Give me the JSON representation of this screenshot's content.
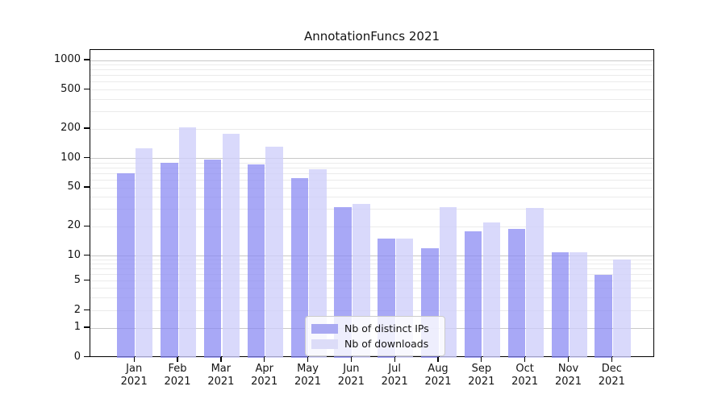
{
  "title": "AnnotationFuncs 2021",
  "legend": {
    "items": [
      {
        "label": "Nb of distinct IPs",
        "swatch_color": "#a9a9f2"
      },
      {
        "label": "Nb of downloads",
        "swatch_color": "#dcdcf8"
      }
    ]
  },
  "colors": {
    "bar_distinct_ips": "rgba(134,134,242,0.72)",
    "bar_downloads": "rgba(206,206,250,0.78)",
    "grid_major": "#c8c8c8",
    "grid_minor": "#ebebeb",
    "axis_text": "#141414"
  },
  "chart_data": {
    "type": "bar",
    "title": "AnnotationFuncs 2021",
    "categories": [
      "Jan",
      "Feb",
      "Mar",
      "Apr",
      "May",
      "Jun",
      "Jul",
      "Aug",
      "Sep",
      "Oct",
      "Nov",
      "Dec"
    ],
    "x_year": "2021",
    "series": [
      {
        "name": "Nb of distinct IPs",
        "values": [
          70,
          90,
          98,
          87,
          63,
          32,
          15,
          12,
          18,
          19,
          11,
          6
        ]
      },
      {
        "name": "Nb of downloads",
        "values": [
          128,
          209,
          180,
          133,
          77,
          34,
          15,
          32,
          22,
          31,
          11,
          9
        ]
      }
    ],
    "yscale": "symlog",
    "yticks": [
      0,
      1,
      2,
      5,
      10,
      20,
      50,
      100,
      200,
      500,
      1000
    ],
    "ylim": [
      0,
      1300
    ],
    "grid": "horizontal log gridlines, majors at decades, faint minors",
    "legend_position": "lower center"
  }
}
